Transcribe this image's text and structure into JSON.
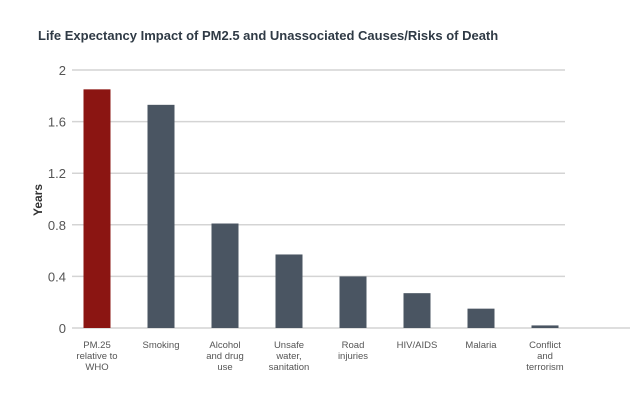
{
  "chart_data": {
    "type": "bar",
    "title": "Life Expectancy Impact of PM2.5 and Unassociated Causes/Risks of Death",
    "xlabel": "",
    "ylabel": "Years",
    "ylim": [
      0,
      2
    ],
    "yticks": [
      "0",
      "0.4",
      "0.8",
      "1.2",
      "1.6",
      "2"
    ],
    "grid": true,
    "categories": [
      [
        "PM.25",
        "relative to",
        "WHO"
      ],
      [
        "Smoking"
      ],
      [
        "Alcohol",
        "and drug",
        "use"
      ],
      [
        "Unsafe",
        "water,",
        "sanitation"
      ],
      [
        "Road",
        "injuries"
      ],
      [
        "HIV/AIDS"
      ],
      [
        "Malaria"
      ],
      [
        "Conflict",
        "and",
        "terrorism"
      ]
    ],
    "values": [
      1.85,
      1.73,
      0.81,
      0.57,
      0.4,
      0.27,
      0.15,
      0.02
    ],
    "colors": [
      "#8b1512",
      "#4a5562",
      "#4a5562",
      "#4a5562",
      "#4a5562",
      "#4a5562",
      "#4a5562",
      "#4a5562"
    ]
  }
}
